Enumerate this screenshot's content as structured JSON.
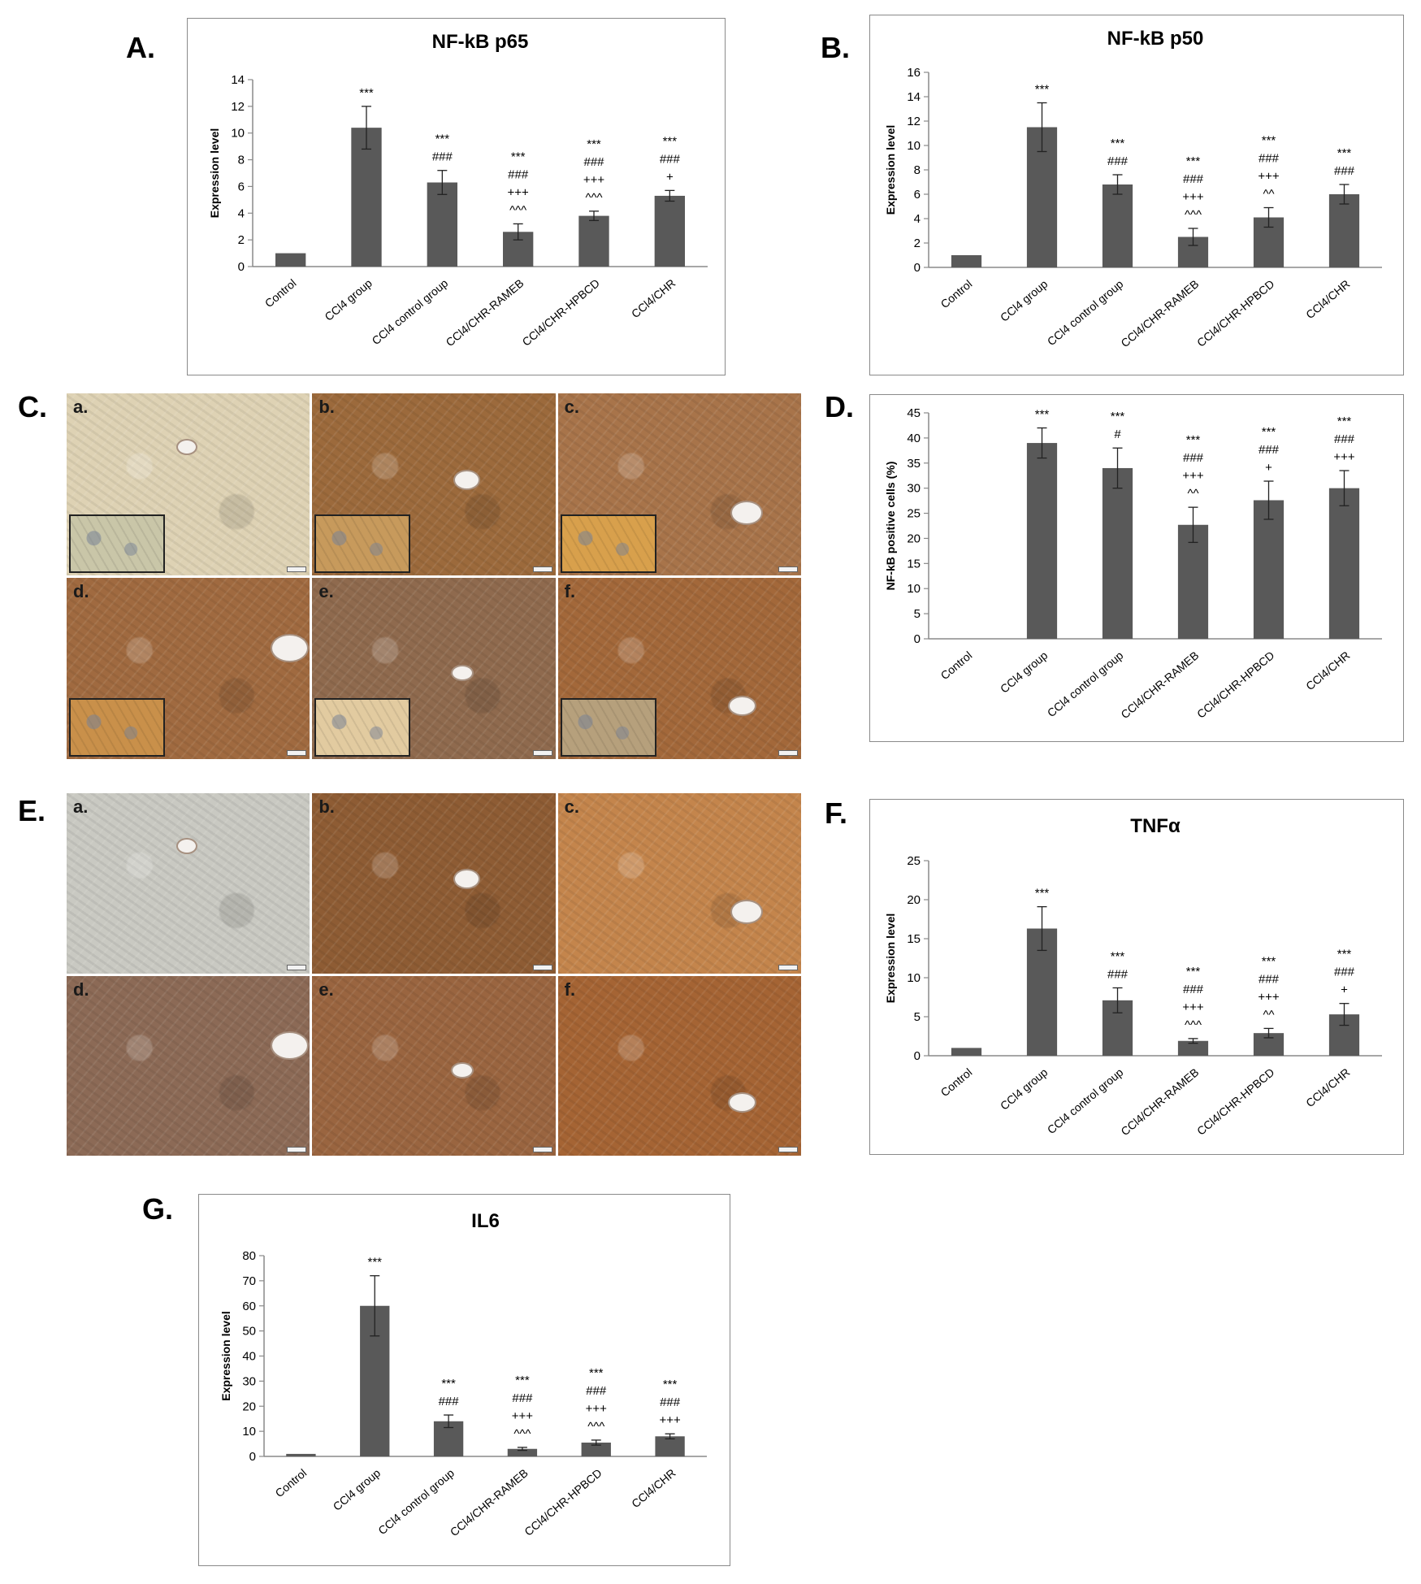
{
  "panels": {
    "A": "A.",
    "B": "B.",
    "C": "C.",
    "D": "D.",
    "E": "E.",
    "F": "F.",
    "G": "G."
  },
  "colors": {
    "bar": "#595959",
    "axis": "#8a8a8a",
    "frame": "#8a8a8a"
  },
  "micrographs": {
    "C": {
      "labels": [
        "a.",
        "b.",
        "c.",
        "d.",
        "e.",
        "f."
      ],
      "tones": [
        "#ded2b4",
        "#9c6a3c",
        "#a8744a",
        "#a06a40",
        "#8f6a4e",
        "#a3683a"
      ],
      "inset_tones": [
        "#c9c6a8",
        "#c79a5c",
        "#d8a04c",
        "#c9904a",
        "#e2cba0",
        "#b6a07c"
      ]
    },
    "E": {
      "labels": [
        "a.",
        "b.",
        "c.",
        "d.",
        "e.",
        "f."
      ],
      "tones": [
        "#c9c9c2",
        "#8e5c34",
        "#c4854c",
        "#8c6a56",
        "#9a6540",
        "#a56434"
      ]
    }
  },
  "chart_data": [
    {
      "id": "A",
      "type": "bar",
      "title": "NF-kB p65",
      "ylabel": "Expression level",
      "categories": [
        "Control",
        "CCl4 group",
        "CCl4 control group",
        "CCl4/CHR-RAMEB",
        "CCl4/CHR-HPBCD",
        "CCl4/CHR"
      ],
      "values": [
        1.0,
        10.4,
        6.3,
        2.6,
        3.8,
        5.3
      ],
      "errors": [
        0.0,
        1.6,
        0.9,
        0.6,
        0.35,
        0.4
      ],
      "ylim": [
        0,
        14
      ],
      "yticks": [
        0,
        2,
        4,
        6,
        8,
        10,
        12,
        14
      ],
      "annotations": [
        [],
        [
          "***"
        ],
        [
          "***",
          "###"
        ],
        [
          "***",
          "###",
          "+++",
          "^^^"
        ],
        [
          "***",
          "###",
          "+++",
          "^^^"
        ],
        [
          "***",
          "###",
          "+"
        ]
      ]
    },
    {
      "id": "B",
      "type": "bar",
      "title": "NF-kB p50",
      "ylabel": "Expression level",
      "categories": [
        "Control",
        "CCl4 group",
        "CCl4 control group",
        "CCl4/CHR-RAMEB",
        "CCl4/CHR-HPBCD",
        "CCl4/CHR"
      ],
      "values": [
        1.0,
        11.5,
        6.8,
        2.5,
        4.1,
        6.0
      ],
      "errors": [
        0.0,
        2.0,
        0.8,
        0.7,
        0.8,
        0.8
      ],
      "ylim": [
        0,
        16
      ],
      "yticks": [
        0,
        2,
        4,
        6,
        8,
        10,
        12,
        14,
        16
      ],
      "annotations": [
        [],
        [
          "***"
        ],
        [
          "***",
          "###"
        ],
        [
          "***",
          "###",
          "+++",
          "^^^"
        ],
        [
          "***",
          "###",
          "+++",
          "^^"
        ],
        [
          "***",
          "###"
        ]
      ]
    },
    {
      "id": "D",
      "type": "bar",
      "title": "",
      "ylabel": "NF-kB positive cells (%)",
      "categories": [
        "Control",
        "CCl4 group",
        "CCl4 control group",
        "CCl4/CHR-RAMEB",
        "CCl4/CHR-HPBCD",
        "CCl4/CHR"
      ],
      "values": [
        0,
        39.0,
        34.0,
        22.7,
        27.6,
        30.0
      ],
      "errors": [
        0,
        3.0,
        4.0,
        3.5,
        3.8,
        3.5
      ],
      "ylim": [
        0,
        45
      ],
      "yticks": [
        0,
        5,
        10,
        15,
        20,
        25,
        30,
        35,
        40,
        45
      ],
      "annotations": [
        [],
        [
          "***"
        ],
        [
          "***",
          "#"
        ],
        [
          "***",
          "###",
          "+++",
          "^^"
        ],
        [
          "***",
          "###",
          "+"
        ],
        [
          "***",
          "###",
          "+++"
        ]
      ]
    },
    {
      "id": "F",
      "type": "bar",
      "title": "TNFα",
      "ylabel": "Expression level",
      "categories": [
        "Control",
        "CCl4 group",
        "CCl4 control group",
        "CCl4/CHR-RAMEB",
        "CCl4/CHR-HPBCD",
        "CCl4/CHR"
      ],
      "values": [
        1.0,
        16.3,
        7.1,
        1.9,
        2.9,
        5.3
      ],
      "errors": [
        0.0,
        2.8,
        1.6,
        0.3,
        0.6,
        1.4
      ],
      "ylim": [
        0,
        25
      ],
      "yticks": [
        0,
        5,
        10,
        15,
        20,
        25
      ],
      "annotations": [
        [],
        [
          "***"
        ],
        [
          "***",
          "###"
        ],
        [
          "***",
          "###",
          "+++",
          "^^^"
        ],
        [
          "***",
          "###",
          "+++",
          "^^"
        ],
        [
          "***",
          "###",
          "+"
        ]
      ]
    },
    {
      "id": "G",
      "type": "bar",
      "title": "IL6",
      "ylabel": "Expression level",
      "categories": [
        "Control",
        "CCl4 group",
        "CCl4 control group",
        "CCl4/CHR-RAMEB",
        "CCl4/CHR-HPBCD",
        "CCl4/CHR"
      ],
      "values": [
        1.0,
        60.0,
        14.0,
        3.0,
        5.5,
        8.0
      ],
      "errors": [
        0.0,
        12.0,
        2.5,
        0.6,
        1.0,
        1.0
      ],
      "ylim": [
        0,
        80
      ],
      "yticks": [
        0,
        10,
        20,
        30,
        40,
        50,
        60,
        70,
        80
      ],
      "annotations": [
        [],
        [
          "***"
        ],
        [
          "***",
          "###"
        ],
        [
          "***",
          "###",
          "+++",
          "^^^"
        ],
        [
          "***",
          "###",
          "+++",
          "^^^"
        ],
        [
          "***",
          "###",
          "+++"
        ]
      ]
    }
  ]
}
